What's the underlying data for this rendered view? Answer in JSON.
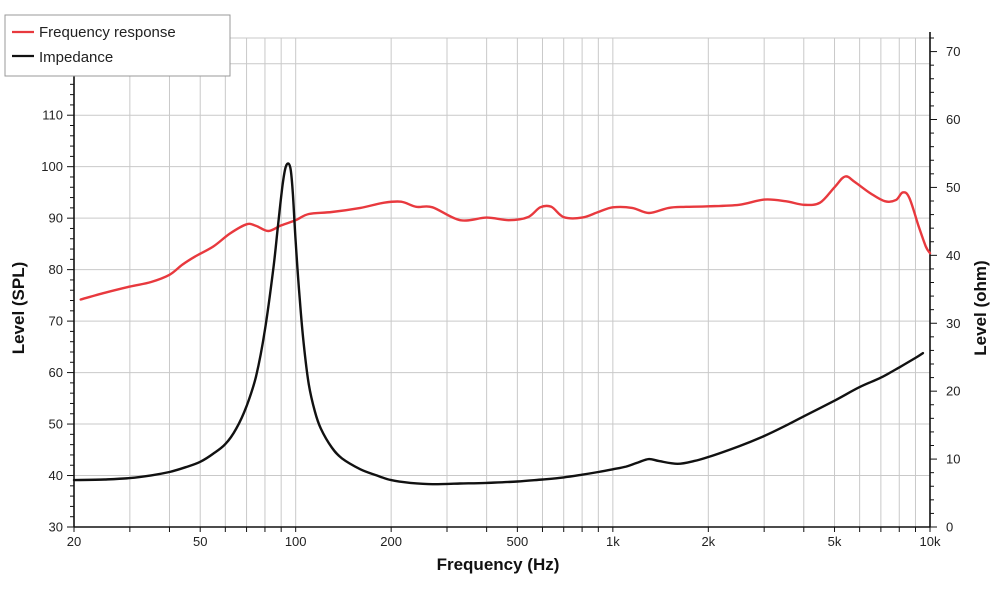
{
  "chart_data": {
    "type": "line",
    "xlabel": "Frequency (Hz)",
    "ylabel": "Level (SPL)",
    "y2label": "Level (ohm)",
    "x_scale": "log",
    "xlim": [
      20,
      10000
    ],
    "ylim": [
      30,
      125
    ],
    "y2lim": [
      0,
      72
    ],
    "grid": true,
    "legend_position": "top-left",
    "x_ticks": [
      {
        "value": 20,
        "label": "20"
      },
      {
        "value": 50,
        "label": "50"
      },
      {
        "value": 100,
        "label": "100"
      },
      {
        "value": 200,
        "label": "200"
      },
      {
        "value": 500,
        "label": "500"
      },
      {
        "value": 1000,
        "label": "1k"
      },
      {
        "value": 2000,
        "label": "2k"
      },
      {
        "value": 5000,
        "label": "5k"
      },
      {
        "value": 10000,
        "label": "10k"
      }
    ],
    "y_ticks": [
      30,
      40,
      50,
      60,
      70,
      80,
      90,
      100,
      110,
      120
    ],
    "y2_ticks": [
      0,
      10,
      20,
      30,
      40,
      50,
      60,
      70
    ],
    "series": [
      {
        "name": "Frequency response",
        "axis": "left",
        "color": "#e8393e",
        "x": [
          21,
          25,
          30,
          35,
          40,
          44,
          48,
          55,
          62,
          70,
          75,
          82,
          90,
          100,
          110,
          130,
          160,
          190,
          215,
          240,
          270,
          330,
          400,
          470,
          540,
          590,
          640,
          700,
          800,
          900,
          1000,
          1150,
          1300,
          1500,
          1700,
          2000,
          2500,
          3000,
          3500,
          4000,
          4500,
          5000,
          5400,
          5800,
          6500,
          7200,
          7800,
          8200,
          8600,
          9200,
          9700,
          10000
        ],
        "y": [
          74.2,
          75.5,
          76.7,
          77.6,
          79,
          81,
          82.5,
          84.5,
          87,
          88.8,
          88.5,
          87.5,
          88.6,
          89.6,
          90.8,
          91.2,
          92,
          93,
          93.2,
          92.2,
          92.1,
          89.6,
          90.1,
          89.6,
          90.2,
          92.1,
          92.2,
          90.2,
          90.1,
          91.2,
          92.1,
          92,
          91,
          92,
          92.2,
          92.3,
          92.6,
          93.6,
          93.3,
          92.6,
          93,
          96,
          98.1,
          97,
          94.8,
          93.3,
          93.5,
          95,
          94,
          88.5,
          84.5,
          83.2
        ]
      },
      {
        "name": "Impedance",
        "axis": "right",
        "color": "#111111",
        "x": [
          20,
          25,
          30,
          35,
          40,
          45,
          50,
          55,
          60,
          65,
          70,
          75,
          80,
          85,
          88,
          91,
          93,
          95,
          96.5,
          98,
          100,
          103,
          106,
          110,
          115,
          120,
          130,
          140,
          160,
          180,
          200,
          230,
          270,
          330,
          400,
          500,
          600,
          700,
          800,
          900,
          1000,
          1100,
          1200,
          1300,
          1400,
          1600,
          1800,
          2000,
          2500,
          3000,
          3500,
          4000,
          5000,
          6000,
          7000,
          8000,
          9000,
          9500
        ],
        "y": [
          6.9,
          7.0,
          7.2,
          7.6,
          8.1,
          8.8,
          9.6,
          10.8,
          12.2,
          14.5,
          17.8,
          22.2,
          29,
          38,
          44.5,
          50.5,
          53,
          53.5,
          52.5,
          49,
          42,
          33.5,
          27,
          21,
          17,
          14.5,
          11.7,
          10.1,
          8.5,
          7.6,
          6.9,
          6.5,
          6.3,
          6.4,
          6.5,
          6.7,
          7.0,
          7.3,
          7.7,
          8.1,
          8.5,
          8.9,
          9.5,
          10.0,
          9.7,
          9.3,
          9.7,
          10.3,
          11.9,
          13.4,
          14.9,
          16.3,
          18.6,
          20.6,
          22.0,
          23.5,
          24.9,
          25.6
        ]
      }
    ]
  }
}
